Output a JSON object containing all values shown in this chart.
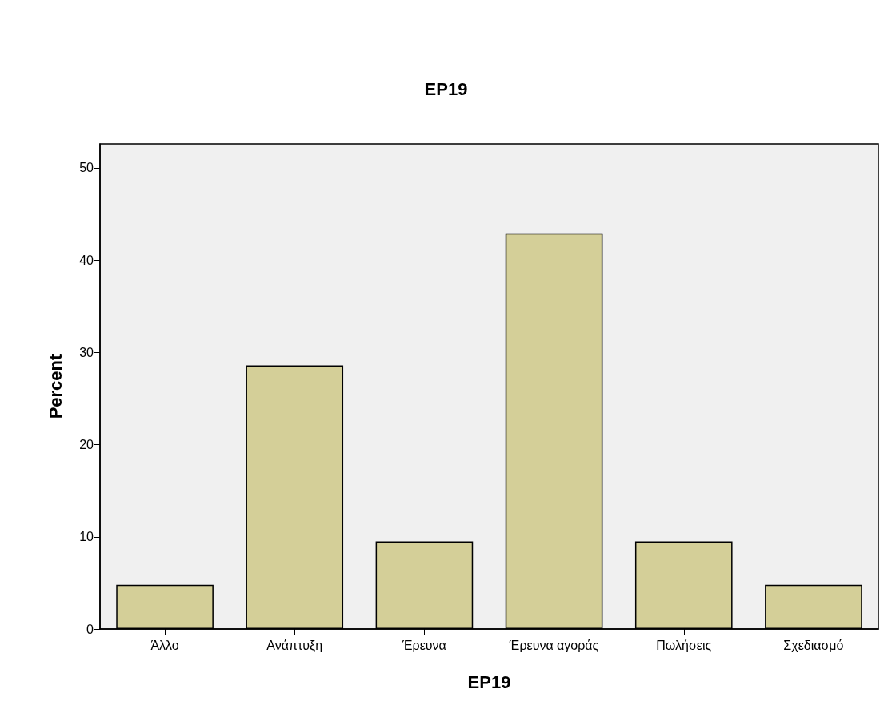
{
  "chart_data": {
    "type": "bar",
    "title": "EP19",
    "xlabel": "EP19",
    "ylabel": "Percent",
    "categories": [
      "Άλλο",
      "Ανάπτυξη",
      "Έρευνα",
      "Έρευνα αγοράς",
      "Πωλήσεις",
      "Σχεδιασμό"
    ],
    "values": [
      4.8,
      28.6,
      9.5,
      42.9,
      9.5,
      4.8
    ],
    "color": "#d4cf98",
    "ylim": [
      0,
      52.6
    ],
    "yticks": [
      0,
      10,
      20,
      30,
      40,
      50
    ],
    "grid": false
  }
}
